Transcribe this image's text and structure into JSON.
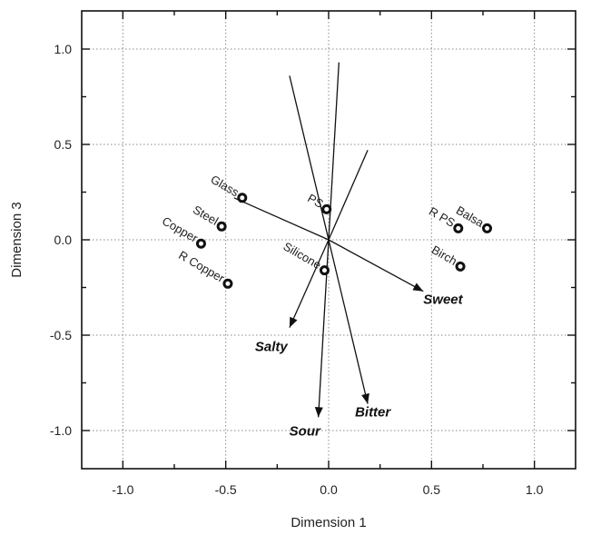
{
  "chart_data": {
    "type": "scatter",
    "xlabel": "Dimension 1",
    "ylabel": "Dimension 3",
    "xlim": [
      -1.2,
      1.2
    ],
    "ylim": [
      -1.2,
      1.2
    ],
    "xticks": [
      -1.0,
      -0.5,
      0.0,
      0.5,
      1.0
    ],
    "yticks": [
      -1.0,
      -0.5,
      0.0,
      0.5,
      1.0
    ],
    "xtick_labels": [
      "-1.0",
      "-0.5",
      "0.0",
      "0.5",
      "1.0"
    ],
    "ytick_labels": [
      "-1.0",
      "-0.5",
      "0.0",
      "0.5",
      "1.0"
    ],
    "grid": true,
    "points": [
      {
        "label": "Glass",
        "x": -0.42,
        "y": 0.22
      },
      {
        "label": "Steel",
        "x": -0.52,
        "y": 0.07
      },
      {
        "label": "Copper",
        "x": -0.62,
        "y": -0.02
      },
      {
        "label": "R Copper",
        "x": -0.49,
        "y": -0.23
      },
      {
        "label": "PS",
        "x": -0.01,
        "y": 0.16
      },
      {
        "label": "Silicone",
        "x": -0.02,
        "y": -0.16
      },
      {
        "label": "Balsa",
        "x": 0.77,
        "y": 0.06
      },
      {
        "label": "R PS",
        "x": 0.63,
        "y": 0.06
      },
      {
        "label": "Birch",
        "x": 0.64,
        "y": -0.14
      }
    ],
    "vectors": [
      {
        "label": "Sweet",
        "x": 0.46,
        "y": -0.27,
        "arrow": true
      },
      {
        "label": "Salty",
        "x": -0.19,
        "y": -0.46,
        "arrow": true
      },
      {
        "label": "Sour",
        "x": -0.05,
        "y": -0.93,
        "arrow": true
      },
      {
        "label": "Bitter",
        "x": 0.19,
        "y": -0.86,
        "arrow": true
      },
      {
        "label": "",
        "x": -0.46,
        "y": 0.22,
        "arrow": false
      },
      {
        "label": "",
        "x": -0.19,
        "y": 0.86,
        "arrow": false
      },
      {
        "label": "",
        "x": 0.05,
        "y": 0.93,
        "arrow": false
      },
      {
        "label": "",
        "x": 0.19,
        "y": 0.47,
        "arrow": false
      }
    ]
  }
}
